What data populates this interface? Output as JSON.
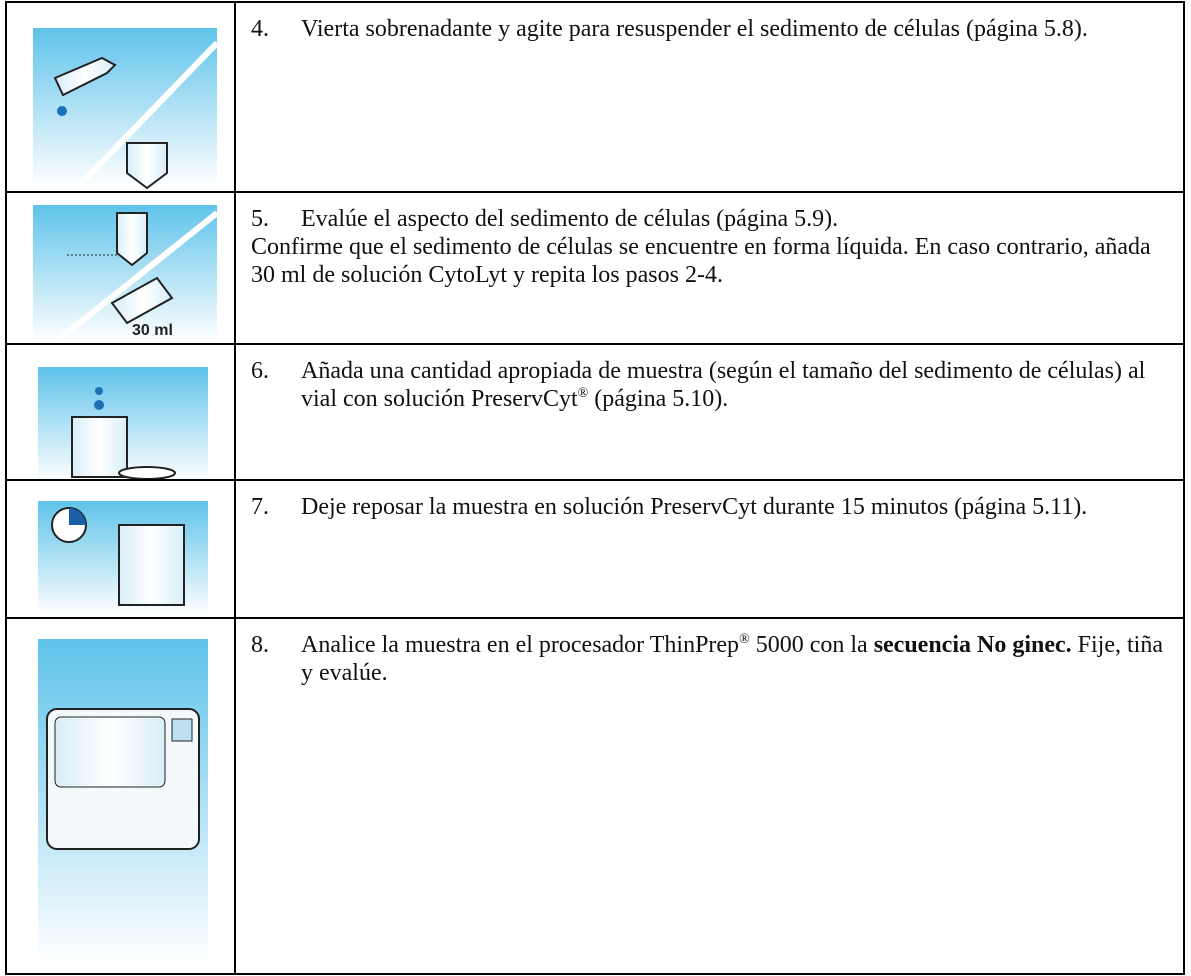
{
  "rows": [
    {
      "number": "4.",
      "parts": [
        "Vierta sobrenadante y agite para resuspender el sedimento de células (página 5.8)."
      ]
    },
    {
      "number": "5.",
      "parts": [
        "Evalúe el aspecto del sedimento de células (página 5.9)."
      ],
      "note": "Confirme que el sedimento de células se encuentre en forma líquida. En caso contrario, añada 30 ml de solución CytoLyt y repita los pasos 2-4.",
      "icon_label": "30 ml"
    },
    {
      "number": "6.",
      "parts": [
        "Añada una cantidad apropiada de muestra (según el tamaño del sedimento de células) al vial con solución PreservCyt",
        "®",
        " (página 5.10)."
      ]
    },
    {
      "number": "7.",
      "parts": [
        "Deje reposar la muestra en solución PreservCyt durante 15 minutos (página 5.11)."
      ]
    },
    {
      "number": "8.",
      "parts": [
        "Analice la muestra en el procesador ThinPrep",
        "®",
        " 5000 con la ",
        "secuencia No ginec.",
        " Fije, tiña y evalúe."
      ]
    }
  ]
}
